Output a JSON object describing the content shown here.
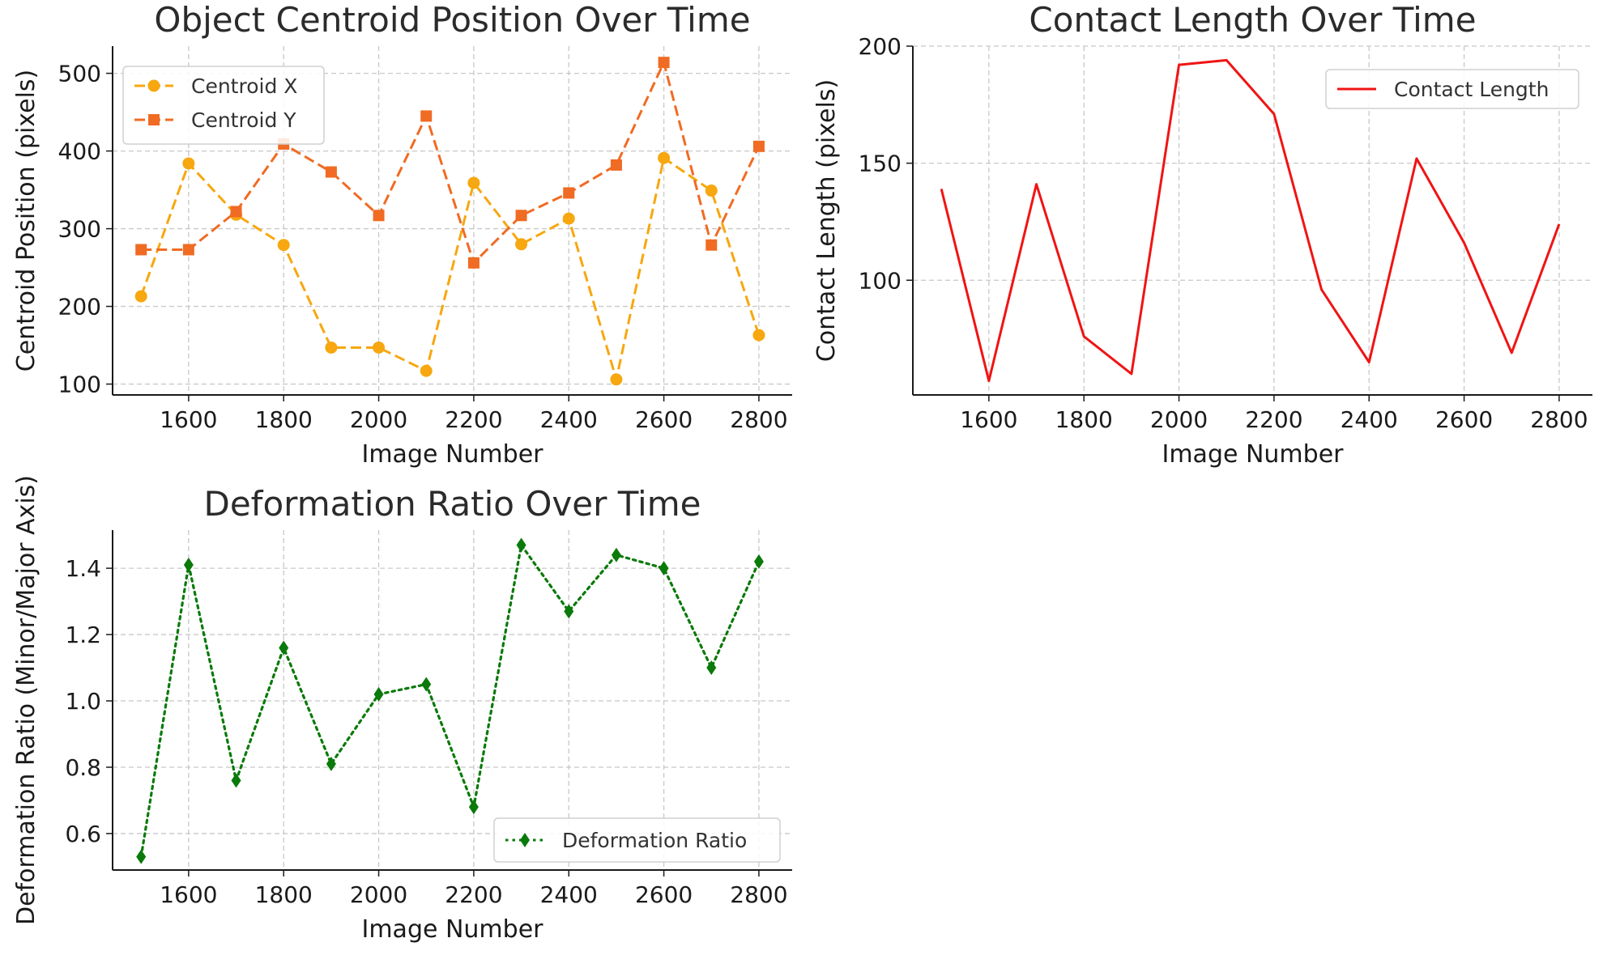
{
  "chart_data": [
    {
      "type": "line",
      "title": "Object Centroid Position Over Time",
      "xlabel": "Image Number",
      "ylabel": "Centroid Position (pixels)",
      "x": [
        1500,
        1600,
        1700,
        1800,
        1900,
        2000,
        2100,
        2200,
        2300,
        2400,
        2500,
        2600,
        2700,
        2800
      ],
      "xticks": [
        1600,
        1800,
        2000,
        2200,
        2400,
        2600,
        2800
      ],
      "yticks": [
        100,
        200,
        300,
        400,
        500
      ],
      "xlim": [
        1440,
        2870
      ],
      "ylim": [
        86,
        535
      ],
      "grid": true,
      "legend_position": "top-left",
      "series": [
        {
          "name": "Centroid X",
          "color": "#f7a70f",
          "linestyle": "dashed",
          "marker": "circle",
          "values": [
            213,
            384,
            318,
            279,
            147,
            147,
            117,
            359,
            280,
            313,
            106,
            391,
            349,
            163
          ]
        },
        {
          "name": "Centroid Y",
          "color": "#f06b23",
          "linestyle": "dashed",
          "marker": "square",
          "values": [
            273,
            273,
            322,
            409,
            373,
            317,
            445,
            256,
            317,
            346,
            382,
            514,
            279,
            406
          ]
        }
      ]
    },
    {
      "type": "line",
      "title": "Contact Length Over Time",
      "xlabel": "Image Number",
      "ylabel": "Contact Length (pixels)",
      "x": [
        1500,
        1600,
        1700,
        1800,
        1900,
        2000,
        2100,
        2200,
        2300,
        2400,
        2500,
        2600,
        2700,
        2800
      ],
      "xticks": [
        1600,
        1800,
        2000,
        2200,
        2400,
        2600,
        2800
      ],
      "yticks": [
        100,
        150,
        200
      ],
      "xlim": [
        1440,
        2870
      ],
      "ylim": [
        51,
        200
      ],
      "grid": true,
      "legend_position": "top-right",
      "series": [
        {
          "name": "Contact Length",
          "color": "#f01414",
          "linestyle": "solid",
          "marker": "none",
          "values": [
            139,
            57,
            141,
            76,
            60,
            192,
            194,
            171,
            96,
            65,
            152,
            116,
            69,
            124
          ]
        }
      ]
    },
    {
      "type": "line",
      "title": "Deformation Ratio Over Time",
      "xlabel": "Image Number",
      "ylabel": "Deformation Ratio (Minor/Major Axis)",
      "x": [
        1500,
        1600,
        1700,
        1800,
        1900,
        2000,
        2100,
        2200,
        2300,
        2400,
        2500,
        2600,
        2700,
        2800
      ],
      "xticks": [
        1600,
        1800,
        2000,
        2200,
        2400,
        2600,
        2800
      ],
      "yticks": [
        0.6,
        0.8,
        1.0,
        1.2,
        1.4
      ],
      "yticklabels": [
        "0.6",
        "0.8",
        "1.0",
        "1.2",
        "1.4"
      ],
      "xlim": [
        1440,
        2870
      ],
      "ylim": [
        0.49,
        1.515
      ],
      "grid": true,
      "legend_position": "bottom-right",
      "series": [
        {
          "name": "Deformation Ratio",
          "color": "#0a7a0a",
          "linestyle": "dotted",
          "marker": "diamond",
          "values": [
            0.53,
            1.41,
            0.76,
            1.16,
            0.81,
            1.02,
            1.05,
            0.68,
            1.47,
            1.27,
            1.44,
            1.4,
            1.1,
            1.42
          ]
        }
      ]
    }
  ]
}
